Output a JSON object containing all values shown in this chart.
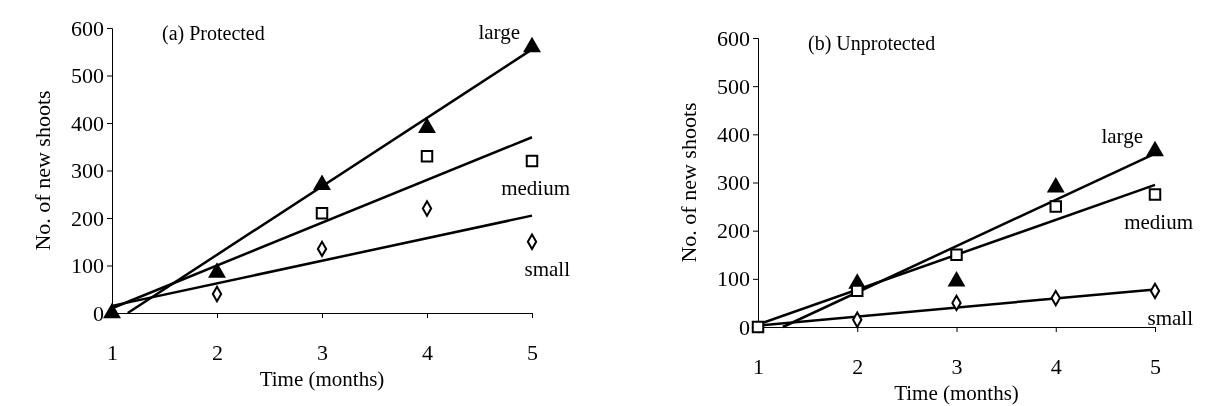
{
  "chart_data": [
    {
      "type": "scatter",
      "title": "(a) Protected",
      "xlabel": "Time (months)",
      "ylabel": "No. of new shoots",
      "x": [
        1,
        2,
        3,
        4,
        5
      ],
      "xlim": [
        1,
        5
      ],
      "xticks": [
        1,
        2,
        3,
        4,
        5
      ],
      "ylim": [
        0,
        600
      ],
      "yticks": [
        0,
        100,
        200,
        300,
        400,
        500,
        600
      ],
      "grid": false,
      "legend": false,
      "series": [
        {
          "name": "large",
          "color": "#000000",
          "marker": "triangle",
          "values": [
            0,
            85,
            270,
            390,
            560
          ]
        },
        {
          "name": "medium",
          "color": "#000000",
          "marker": "square",
          "values": [
            null,
            null,
            210,
            330,
            320
          ]
        },
        {
          "name": "small",
          "color": "#000000",
          "marker": "diamond",
          "values": [
            null,
            40,
            135,
            220,
            150
          ]
        },
        {
          "type": "line",
          "color": "#000000",
          "x": [
            1.15,
            5
          ],
          "values": [
            0,
            555
          ]
        },
        {
          "type": "line",
          "color": "#000000",
          "x": [
            1,
            5
          ],
          "values": [
            10,
            370
          ]
        },
        {
          "type": "line",
          "color": "#000000",
          "x": [
            1,
            5
          ],
          "values": [
            15,
            205
          ]
        }
      ]
    },
    {
      "type": "scatter",
      "title": "(b) Unprotected",
      "xlabel": "Time (months)",
      "ylabel": "No. of new shoots",
      "x": [
        1,
        2,
        3,
        4,
        5
      ],
      "xlim": [
        1,
        5
      ],
      "xticks": [
        1,
        2,
        3,
        4,
        5
      ],
      "ylim": [
        0,
        600
      ],
      "yticks": [
        0,
        100,
        200,
        300,
        400,
        500,
        600
      ],
      "grid": false,
      "legend": false,
      "series": [
        {
          "name": "large",
          "color": "#000000",
          "marker": "triangle",
          "values": [
            null,
            90,
            95,
            290,
            365
          ]
        },
        {
          "name": "medium",
          "color": "#000000",
          "marker": "square",
          "values": [
            0,
            75,
            150,
            250,
            275
          ]
        },
        {
          "name": "small",
          "color": "#000000",
          "marker": "diamond",
          "values": [
            null,
            15,
            50,
            60,
            75
          ]
        },
        {
          "type": "line",
          "color": "#000000",
          "x": [
            1.25,
            5
          ],
          "values": [
            0,
            360
          ]
        },
        {
          "type": "line",
          "color": "#000000",
          "x": [
            1,
            5
          ],
          "values": [
            5,
            295
          ]
        },
        {
          "type": "line",
          "color": "#000000",
          "x": [
            1,
            5
          ],
          "values": [
            3,
            78
          ]
        }
      ]
    }
  ]
}
